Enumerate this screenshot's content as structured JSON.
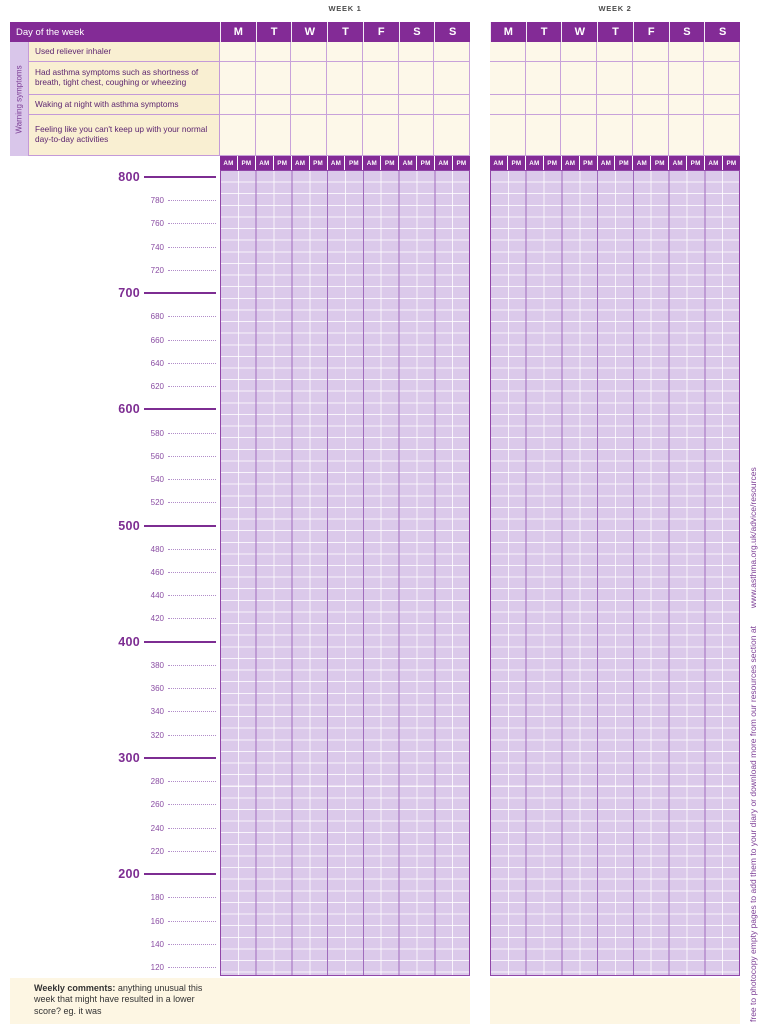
{
  "weeks": [
    {
      "title": "WEEK 1"
    },
    {
      "title": "WEEK 2"
    }
  ],
  "day_header": {
    "label": "Day of the week",
    "days": [
      "M",
      "T",
      "W",
      "T",
      "F",
      "S",
      "S"
    ]
  },
  "warning_symptoms": {
    "side_label": "Warning symptoms",
    "rows": [
      "Used reliever inhaler",
      "Had asthma symptoms such as shortness of breath, tight chest, coughing or wheezing",
      "Waking at night with asthma symptoms",
      "Feeling like you can't keep up with your normal day-to-day activities"
    ]
  },
  "ampm": {
    "am": "AM",
    "pm": "PM"
  },
  "scale": {
    "values": [
      800,
      780,
      760,
      740,
      720,
      700,
      680,
      660,
      640,
      620,
      600,
      580,
      560,
      540,
      520,
      500,
      480,
      460,
      440,
      420,
      400,
      380,
      360,
      340,
      320,
      300,
      280,
      260,
      240,
      220,
      200,
      180,
      160,
      140,
      120
    ]
  },
  "comments": {
    "lead": "Weekly comments:",
    "text": " anything unusual this week that might have resulted in a lower score? eg. it was"
  },
  "footer": {
    "note": "free to photocopy empty pages to add them to your diary or download more from our resources section at",
    "url": "www.asthma.org.uk/advice/resources"
  },
  "colors": {
    "purple": "#832b96",
    "grid_fill": "#dbc9ea",
    "day_separator": "#a06cbd",
    "cream_label": "#f9efd2",
    "cream_cell": "#fdf8e9",
    "lavender_strip": "#d9c6ea",
    "scale_text": "#7d2d92"
  }
}
